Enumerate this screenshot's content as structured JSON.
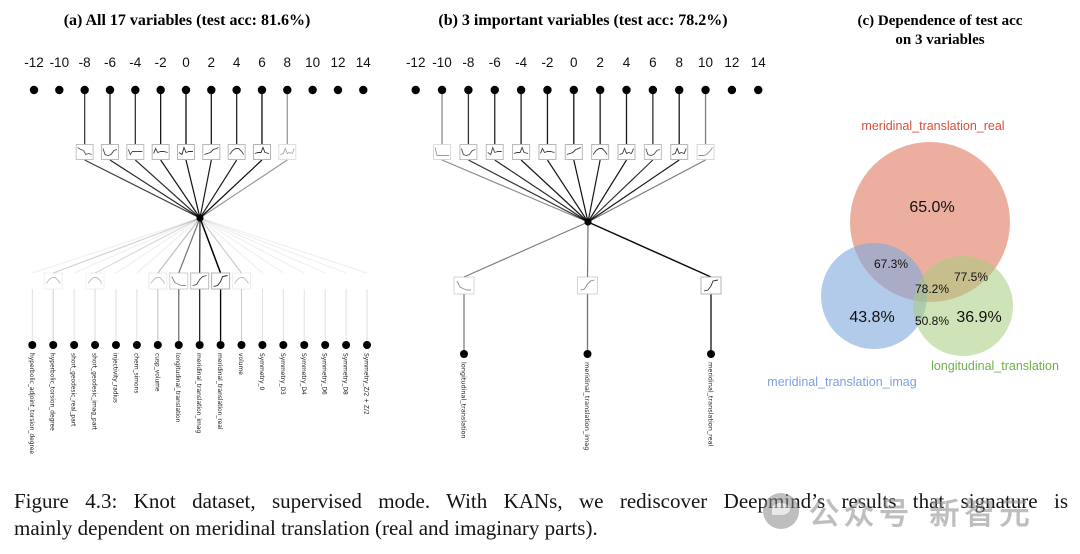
{
  "panels": {
    "a": {
      "title": "(a) All 17 variables (test acc: 81.6%)",
      "ticks": [
        "-12",
        "-10",
        "-8",
        "-6",
        "-4",
        "-2",
        "0",
        "2",
        "4",
        "6",
        "8",
        "10",
        "12",
        "14"
      ],
      "active_tick_range": [
        "-8",
        "8"
      ],
      "upper_edge_strengths": [
        0.75,
        0.85,
        0.8,
        0.9,
        0.95,
        0.9,
        0.85,
        0.95,
        0.4
      ],
      "lower_edge_strengths": [
        0.06,
        0.18,
        0.06,
        0.15,
        0.06,
        0.06,
        0.25,
        0.55,
        0.85,
        1.0,
        0.2,
        0.06,
        0.06,
        0.06,
        0.06,
        0.06,
        0.06
      ],
      "variables": [
        "hyperbolic_adjoint_torsion_degree",
        "hyperbolic_torsion_degree",
        "short_geodesic_real_part",
        "short_geodesic_imag_part",
        "injectivity_radius",
        "chern_simons",
        "cusp_volume",
        "longitudinal_translation",
        "meridinal_translation_imag",
        "meridinal_translation_real",
        "volume",
        "Symmetry_0",
        "Symmetry_D3",
        "Symmetry_D4",
        "Symmetry_D6",
        "Symmetry_D8",
        "Symmetry_Z/2 + Z/2"
      ]
    },
    "b": {
      "title": "(b) 3 important variables (test acc: 78.2%)",
      "ticks": [
        "-12",
        "-10",
        "-8",
        "-6",
        "-4",
        "-2",
        "0",
        "2",
        "4",
        "6",
        "8",
        "10",
        "12",
        "14"
      ],
      "active_tick_range": [
        "-10",
        "10"
      ],
      "upper_edge_strengths": [
        0.45,
        0.8,
        0.85,
        0.9,
        0.9,
        0.95,
        0.9,
        0.9,
        0.8,
        0.9,
        0.5
      ],
      "lower_edge_strengths": [
        0.5,
        0.55,
        0.95
      ],
      "variables": [
        "longitudinal_translation",
        "meridinal_translation_imag",
        "meridinal_translation_real"
      ]
    },
    "c": {
      "title_line1": "(c) Dependence of test acc",
      "title_line2": "on 3 variables"
    }
  },
  "venn": {
    "sets": [
      {
        "name": "meridinal_translation_real",
        "value": "65.0%",
        "label_color": "#d6503c",
        "fill": "#e07a5f"
      },
      {
        "name": "meridinal_translation_imag",
        "value": "43.8%",
        "label_color": "#7da0e0",
        "fill": "#7fa8dd"
      },
      {
        "name": "longitudinal_translation",
        "value": "36.9%",
        "label_color": "#6fb04a",
        "fill": "#a7cc7d"
      }
    ],
    "overlaps": {
      "real_imag": "67.3%",
      "real_long": "77.5%",
      "imag_long": "50.8%",
      "all": "78.2%"
    }
  },
  "caption": {
    "line1": "Figure 4.3:  Knot dataset, supervised mode.  With KANs, we rediscover Deepmind’s results that signature is",
    "line2": "mainly dependent on meridinal translation (real and imaginary parts)."
  },
  "watermark": {
    "text": "公众号 新智元"
  }
}
